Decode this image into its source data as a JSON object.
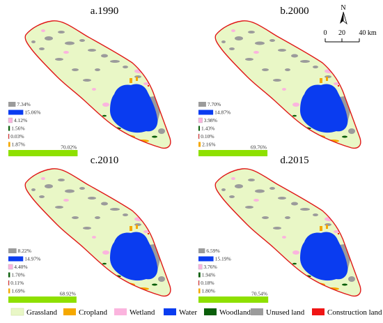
{
  "panels": [
    {
      "id": "a",
      "title": "a.1990",
      "stats": [
        {
          "class": "unused_land",
          "label": "7.34%",
          "value": 7.34
        },
        {
          "class": "water",
          "label": "15.06%",
          "value": 15.06
        },
        {
          "class": "wetland",
          "label": "4.12%",
          "value": 4.12
        },
        {
          "class": "woodland",
          "label": "1.56%",
          "value": 1.56
        },
        {
          "class": "construction_land",
          "label": "0.03%",
          "value": 0.03
        },
        {
          "class": "cropland",
          "label": "1.87%",
          "value": 1.87
        },
        {
          "class": "grassland",
          "label": "70.02%",
          "value": 70.02
        }
      ]
    },
    {
      "id": "b",
      "title": "b.2000",
      "stats": [
        {
          "class": "unused_land",
          "label": "7.70%",
          "value": 7.7
        },
        {
          "class": "water",
          "label": "14.87%",
          "value": 14.87
        },
        {
          "class": "wetland",
          "label": "3.98%",
          "value": 3.98
        },
        {
          "class": "woodland",
          "label": "1.43%",
          "value": 1.43
        },
        {
          "class": "construction_land",
          "label": "0.10%",
          "value": 0.1
        },
        {
          "class": "cropland",
          "label": "2.16%",
          "value": 2.16
        },
        {
          "class": "grassland",
          "label": "69.76%",
          "value": 69.76
        }
      ]
    },
    {
      "id": "c",
      "title": "c.2010",
      "stats": [
        {
          "class": "unused_land",
          "label": "8.22%",
          "value": 8.22
        },
        {
          "class": "water",
          "label": "14.97%",
          "value": 14.97
        },
        {
          "class": "wetland",
          "label": "4.40%",
          "value": 4.4
        },
        {
          "class": "woodland",
          "label": "1.70%",
          "value": 1.7
        },
        {
          "class": "construction_land",
          "label": "0.11%",
          "value": 0.11
        },
        {
          "class": "cropland",
          "label": "1.69%",
          "value": 1.69
        },
        {
          "class": "grassland",
          "label": "68.92%",
          "value": 68.92
        }
      ]
    },
    {
      "id": "d",
      "title": "d.2015",
      "stats": [
        {
          "class": "unused_land",
          "label": "6.59%",
          "value": 6.59
        },
        {
          "class": "water",
          "label": "15.19%",
          "value": 15.19
        },
        {
          "class": "wetland",
          "label": "3.76%",
          "value": 3.76
        },
        {
          "class": "woodland",
          "label": "1.94%",
          "value": 1.94
        },
        {
          "class": "construction_land",
          "label": "0.18%",
          "value": 0.18
        },
        {
          "class": "cropland",
          "label": "1.80%",
          "value": 1.8
        },
        {
          "class": "grassland",
          "label": "70.54%",
          "value": 70.54
        }
      ]
    }
  ],
  "classes": {
    "grassland": {
      "label": "Grassland",
      "color": "#e9f7c6"
    },
    "cropland": {
      "label": "Cropland",
      "color": "#f5a800"
    },
    "wetland": {
      "label": "Wetland",
      "color": "#fbb4de"
    },
    "water": {
      "label": "Water",
      "color": "#0a3cf0"
    },
    "woodland": {
      "label": "Woodland",
      "color": "#0a5e0a"
    },
    "unused_land": {
      "label": "Unused land",
      "color": "#9b9b9b"
    },
    "construction_land": {
      "label": "Construction land",
      "color": "#f01414"
    }
  },
  "legend_order": [
    "grassland",
    "cropland",
    "wetland",
    "water",
    "woodland",
    "unused_land",
    "construction_land"
  ],
  "north_arrow": {
    "label": "N"
  },
  "scale_bar": {
    "ticks": [
      "0",
      "20",
      "40 km"
    ]
  },
  "colors": {
    "boundary": "#e01818",
    "stat_bar_grassland": "#8ee000"
  }
}
